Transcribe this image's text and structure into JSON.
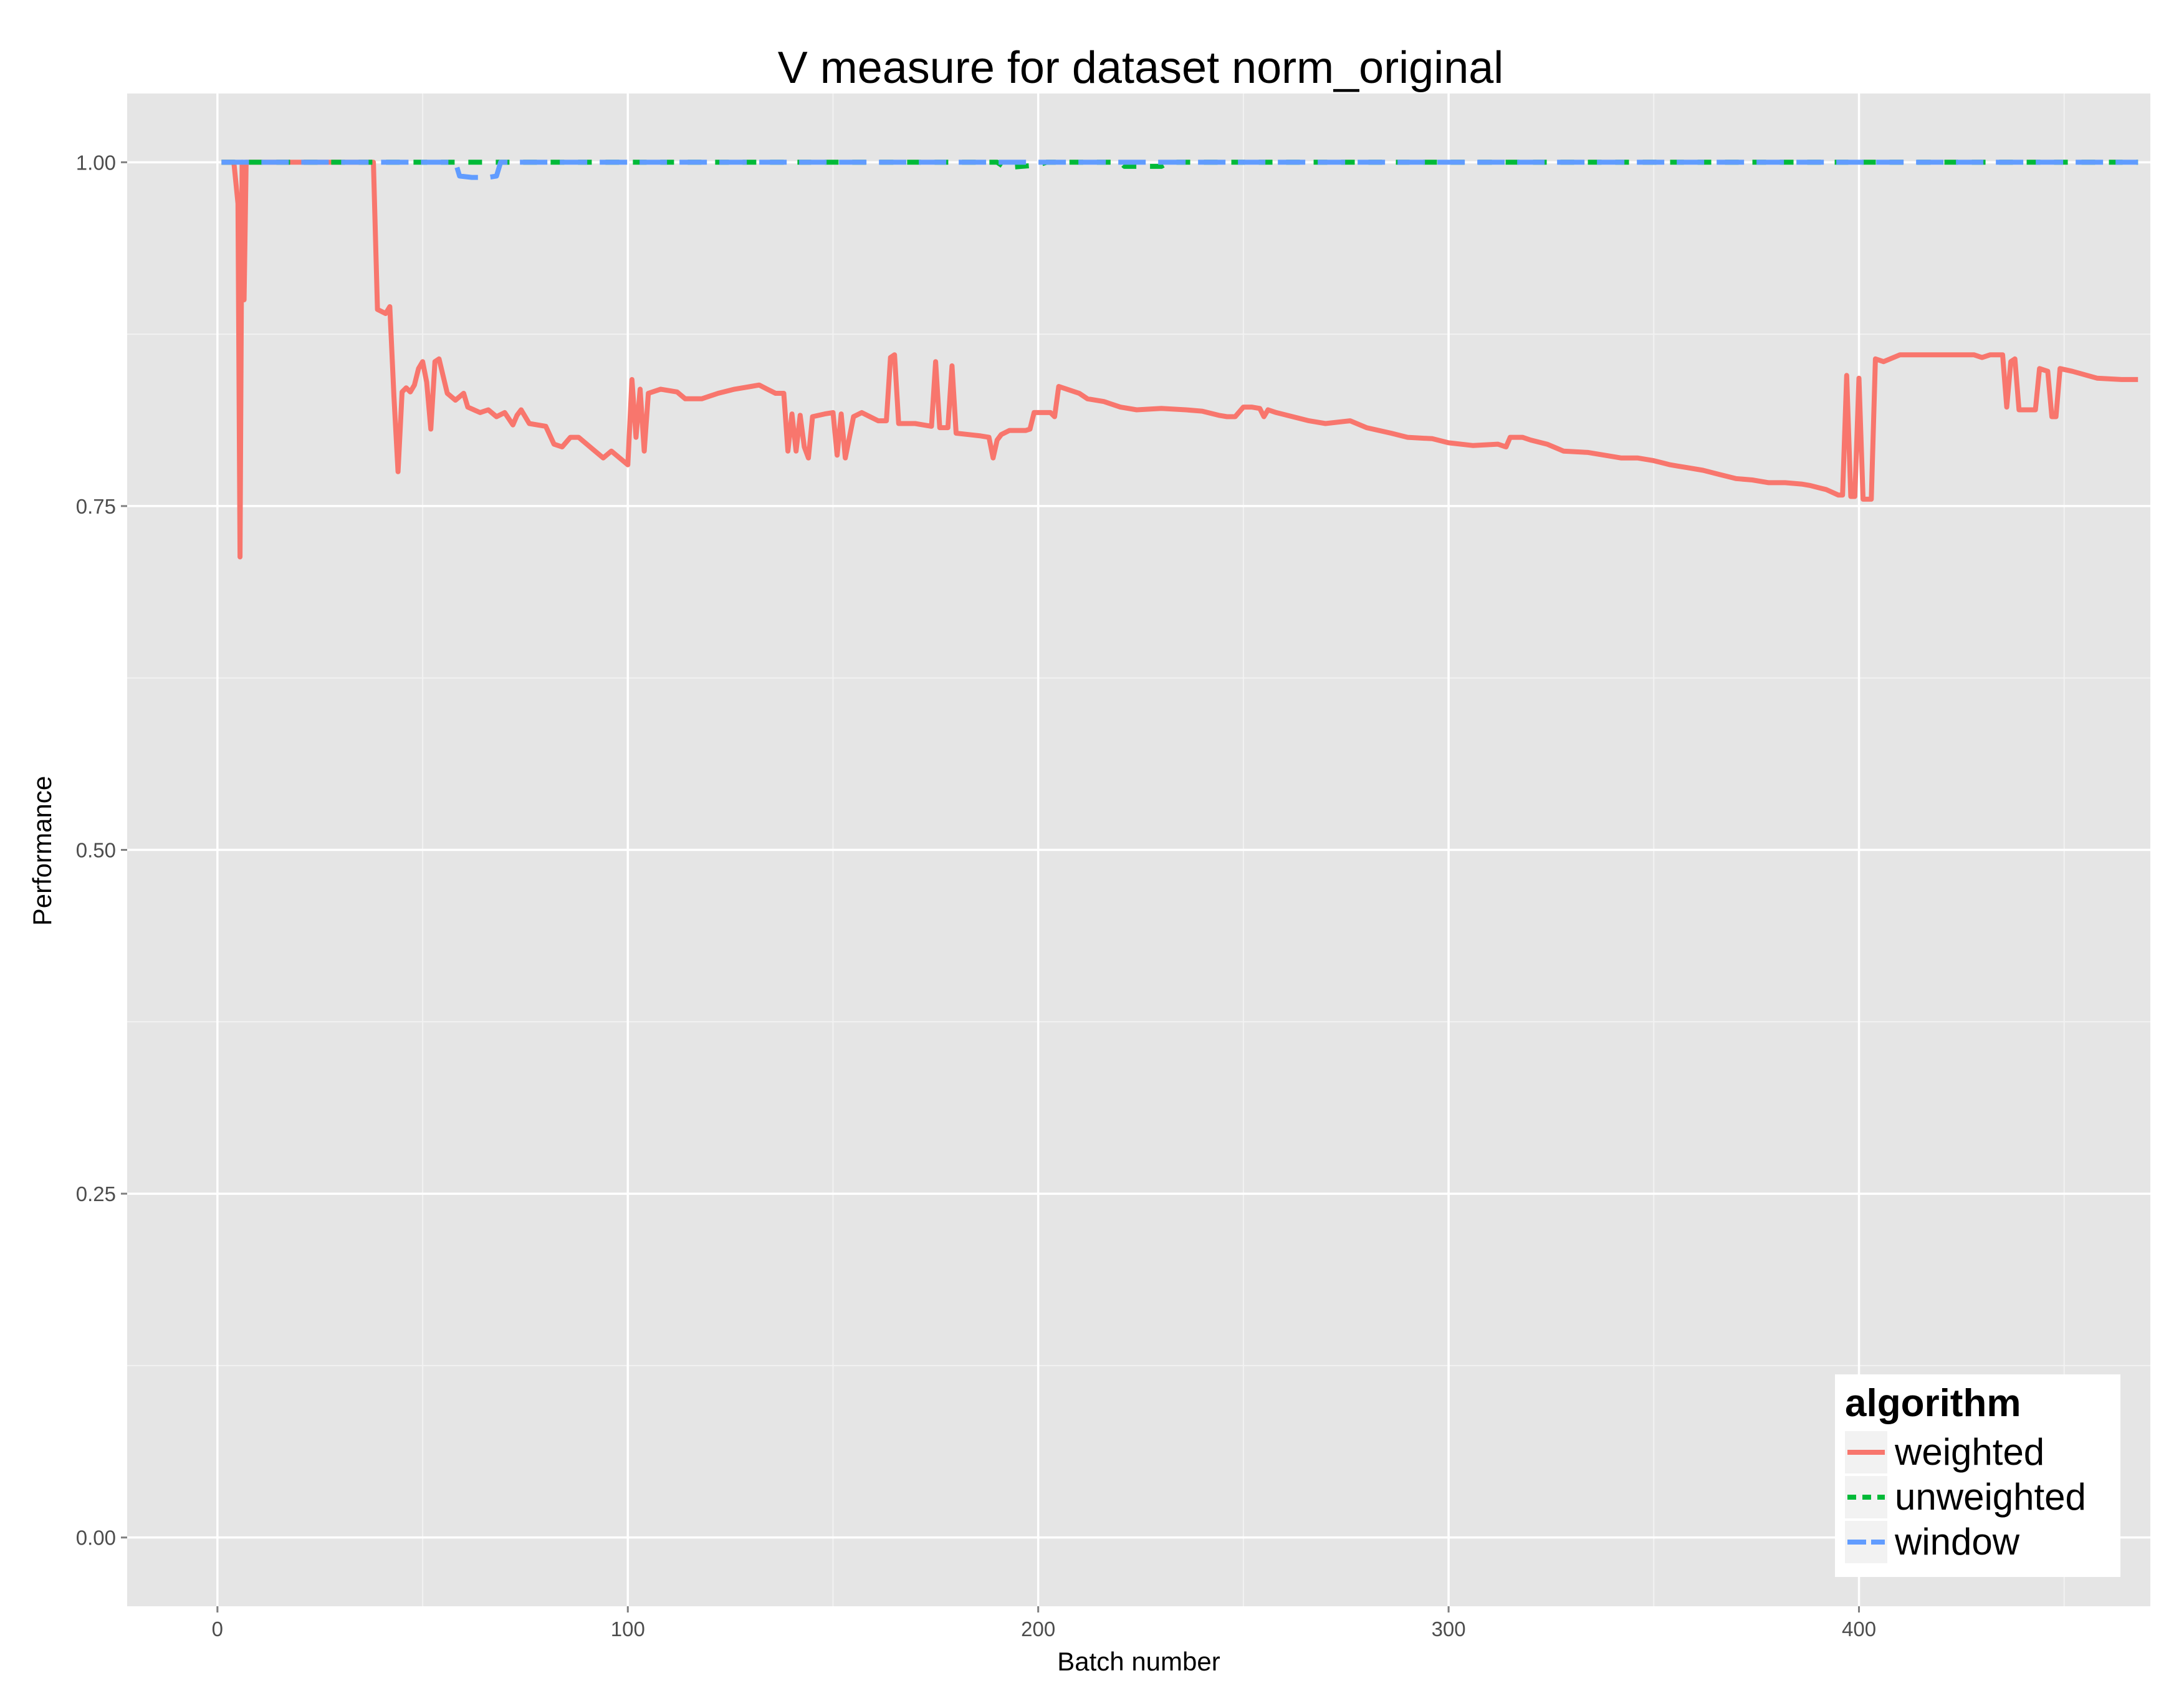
{
  "chart_data": {
    "type": "line",
    "title": "V measure for dataset norm_original",
    "xlabel": "Batch number",
    "ylabel": "Performance",
    "xlim": [
      -22,
      471
    ],
    "ylim": [
      -0.05,
      1.05
    ],
    "x_ticks": [
      0,
      100,
      200,
      300,
      400
    ],
    "y_ticks": [
      0.0,
      0.25,
      0.5,
      0.75,
      1.0
    ],
    "x_tick_labels": [
      "0",
      "100",
      "200",
      "300",
      "400"
    ],
    "y_tick_labels": [
      "0.00",
      "0.25",
      "0.50",
      "0.75",
      "1.00"
    ],
    "grid": true,
    "legend": {
      "title": "algorithm",
      "position": "bottom-right"
    },
    "series": [
      {
        "name": "weighted",
        "color": "#f8766d",
        "dash": "solid",
        "points": [
          [
            1,
            1.0
          ],
          [
            4,
            1.0
          ],
          [
            5,
            0.97
          ],
          [
            5.5,
            0.713
          ],
          [
            6,
            1.0
          ],
          [
            6.5,
            0.9
          ],
          [
            7,
            1.0
          ],
          [
            8,
            1.0
          ],
          [
            20,
            1.0
          ],
          [
            37,
            1.0
          ],
          [
            38,
            1.0
          ],
          [
            39,
            0.893
          ],
          [
            41,
            0.89
          ],
          [
            42,
            0.895
          ],
          [
            43,
            0.83
          ],
          [
            44,
            0.775
          ],
          [
            45,
            0.833
          ],
          [
            46,
            0.836
          ],
          [
            47,
            0.833
          ],
          [
            48,
            0.838
          ],
          [
            49,
            0.85
          ],
          [
            50,
            0.855
          ],
          [
            51,
            0.84
          ],
          [
            52,
            0.806
          ],
          [
            53,
            0.855
          ],
          [
            54,
            0.857
          ],
          [
            56,
            0.832
          ],
          [
            58,
            0.827
          ],
          [
            60,
            0.832
          ],
          [
            61,
            0.822
          ],
          [
            64,
            0.818
          ],
          [
            66,
            0.82
          ],
          [
            68,
            0.815
          ],
          [
            70,
            0.818
          ],
          [
            72,
            0.809
          ],
          [
            73,
            0.816
          ],
          [
            74,
            0.82
          ],
          [
            76,
            0.81
          ],
          [
            80,
            0.808
          ],
          [
            82,
            0.795
          ],
          [
            84,
            0.793
          ],
          [
            86,
            0.8
          ],
          [
            88,
            0.8
          ],
          [
            90,
            0.795
          ],
          [
            92,
            0.79
          ],
          [
            94,
            0.785
          ],
          [
            96,
            0.79
          ],
          [
            98,
            0.785
          ],
          [
            100,
            0.78
          ],
          [
            101,
            0.842
          ],
          [
            102,
            0.8
          ],
          [
            103,
            0.835
          ],
          [
            104,
            0.79
          ],
          [
            105,
            0.832
          ],
          [
            108,
            0.835
          ],
          [
            112,
            0.833
          ],
          [
            114,
            0.828
          ],
          [
            118,
            0.828
          ],
          [
            122,
            0.832
          ],
          [
            126,
            0.835
          ],
          [
            130,
            0.837
          ],
          [
            132,
            0.838
          ],
          [
            134,
            0.835
          ],
          [
            136,
            0.832
          ],
          [
            138,
            0.832
          ],
          [
            139,
            0.79
          ],
          [
            140,
            0.817
          ],
          [
            141,
            0.79
          ],
          [
            142,
            0.816
          ],
          [
            143,
            0.793
          ],
          [
            144,
            0.785
          ],
          [
            145,
            0.815
          ],
          [
            148,
            0.817
          ],
          [
            150,
            0.818
          ],
          [
            151,
            0.787
          ],
          [
            152,
            0.817
          ],
          [
            153,
            0.785
          ],
          [
            155,
            0.815
          ],
          [
            157,
            0.818
          ],
          [
            159,
            0.815
          ],
          [
            161,
            0.812
          ],
          [
            163,
            0.812
          ],
          [
            164,
            0.858
          ],
          [
            165,
            0.86
          ],
          [
            166,
            0.81
          ],
          [
            170,
            0.81
          ],
          [
            174,
            0.808
          ],
          [
            175,
            0.855
          ],
          [
            176,
            0.807
          ],
          [
            178,
            0.807
          ],
          [
            179,
            0.852
          ],
          [
            180,
            0.803
          ],
          [
            183,
            0.802
          ],
          [
            186,
            0.801
          ],
          [
            188,
            0.8
          ],
          [
            189,
            0.785
          ],
          [
            190,
            0.798
          ],
          [
            191,
            0.802
          ],
          [
            193,
            0.805
          ],
          [
            197,
            0.805
          ],
          [
            198,
            0.806
          ],
          [
            199,
            0.818
          ],
          [
            203,
            0.818
          ],
          [
            204,
            0.815
          ],
          [
            205,
            0.837
          ],
          [
            207,
            0.835
          ],
          [
            210,
            0.832
          ],
          [
            212,
            0.828
          ],
          [
            216,
            0.826
          ],
          [
            220,
            0.822
          ],
          [
            224,
            0.82
          ],
          [
            230,
            0.821
          ],
          [
            236,
            0.82
          ],
          [
            240,
            0.819
          ],
          [
            244,
            0.816
          ],
          [
            246,
            0.815
          ],
          [
            248,
            0.815
          ],
          [
            250,
            0.822
          ],
          [
            252,
            0.822
          ],
          [
            254,
            0.821
          ],
          [
            255,
            0.815
          ],
          [
            256,
            0.82
          ],
          [
            258,
            0.818
          ],
          [
            262,
            0.815
          ],
          [
            266,
            0.812
          ],
          [
            270,
            0.81
          ],
          [
            276,
            0.812
          ],
          [
            280,
            0.807
          ],
          [
            286,
            0.803
          ],
          [
            290,
            0.8
          ],
          [
            296,
            0.799
          ],
          [
            300,
            0.796
          ],
          [
            306,
            0.794
          ],
          [
            312,
            0.795
          ],
          [
            314,
            0.793
          ],
          [
            315,
            0.8
          ],
          [
            318,
            0.8
          ],
          [
            320,
            0.798
          ],
          [
            324,
            0.795
          ],
          [
            328,
            0.79
          ],
          [
            334,
            0.789
          ],
          [
            338,
            0.787
          ],
          [
            342,
            0.785
          ],
          [
            346,
            0.785
          ],
          [
            350,
            0.783
          ],
          [
            354,
            0.78
          ],
          [
            356,
            0.779
          ],
          [
            358,
            0.778
          ],
          [
            362,
            0.776
          ],
          [
            366,
            0.773
          ],
          [
            370,
            0.77
          ],
          [
            374,
            0.769
          ],
          [
            378,
            0.767
          ],
          [
            382,
            0.767
          ],
          [
            386,
            0.766
          ],
          [
            388,
            0.765
          ],
          [
            392,
            0.762
          ],
          [
            395,
            0.758
          ],
          [
            396,
            0.758
          ],
          [
            397,
            0.845
          ],
          [
            398,
            0.757
          ],
          [
            399,
            0.757
          ],
          [
            400,
            0.843
          ],
          [
            401,
            0.755
          ],
          [
            403,
            0.755
          ],
          [
            404,
            0.857
          ],
          [
            406,
            0.855
          ],
          [
            410,
            0.86
          ],
          [
            414,
            0.86
          ],
          [
            420,
            0.86
          ],
          [
            424,
            0.86
          ],
          [
            428,
            0.86
          ],
          [
            430,
            0.858
          ],
          [
            432,
            0.86
          ],
          [
            435,
            0.86
          ],
          [
            436,
            0.822
          ],
          [
            437,
            0.855
          ],
          [
            438,
            0.857
          ],
          [
            439,
            0.82
          ],
          [
            441,
            0.82
          ],
          [
            443,
            0.82
          ],
          [
            444,
            0.85
          ],
          [
            446,
            0.848
          ],
          [
            447,
            0.815
          ],
          [
            448,
            0.815
          ],
          [
            449,
            0.85
          ],
          [
            452,
            0.848
          ],
          [
            458,
            0.843
          ],
          [
            464,
            0.842
          ],
          [
            468,
            0.842
          ]
        ]
      },
      {
        "name": "unweighted",
        "color": "#00ba38",
        "dash": "dashed",
        "points": [
          [
            1,
            1.0
          ],
          [
            190,
            1.0
          ],
          [
            192,
            0.996
          ],
          [
            196,
            0.997
          ],
          [
            200,
            0.998
          ],
          [
            202,
            1.0
          ],
          [
            220,
            1.0
          ],
          [
            221,
            0.997
          ],
          [
            230,
            0.997
          ],
          [
            232,
            1.0
          ],
          [
            468,
            1.0
          ]
        ]
      },
      {
        "name": "window",
        "color": "#619cff",
        "dash": "longdash",
        "points": [
          [
            1,
            1.0
          ],
          [
            58,
            1.0
          ],
          [
            59,
            0.99
          ],
          [
            62,
            0.989
          ],
          [
            66,
            0.989
          ],
          [
            68,
            0.99
          ],
          [
            69,
            1.0
          ],
          [
            468,
            1.0
          ]
        ]
      }
    ]
  }
}
